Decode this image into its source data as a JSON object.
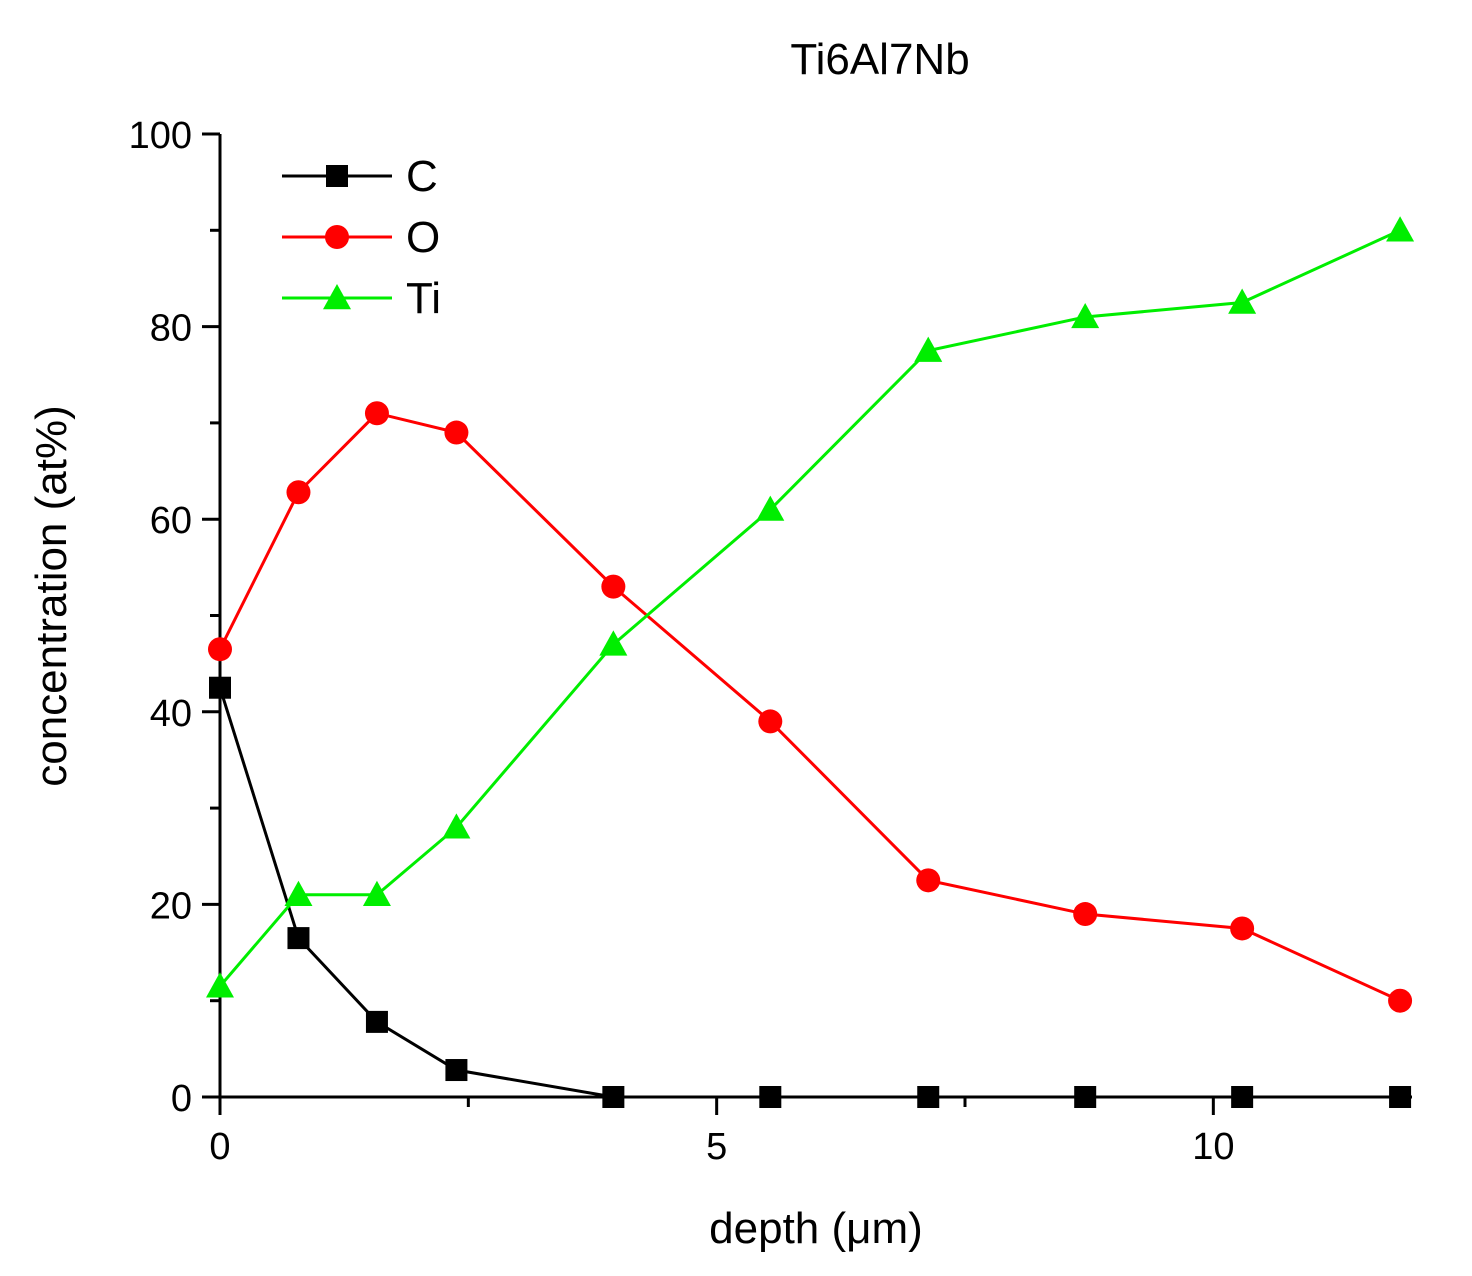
{
  "chart_data": {
    "type": "line",
    "title": "Ti6Al7Nb",
    "xlabel": "depth (μm)",
    "ylabel": "concentration (at%)",
    "xlim": [
      0,
      12
    ],
    "ylim": [
      0,
      100
    ],
    "xticks": [
      0,
      5,
      10
    ],
    "yticks": [
      0,
      20,
      40,
      60,
      80,
      100
    ],
    "grid": false,
    "legend_position": "top-left",
    "x": [
      0,
      0.79,
      1.58,
      2.38,
      3.96,
      5.54,
      7.13,
      8.71,
      10.29,
      11.88
    ],
    "series": [
      {
        "name": "C",
        "color": "#000000",
        "marker": "square",
        "values": [
          42.5,
          16.5,
          7.8,
          2.8,
          0,
          0,
          0,
          0,
          0,
          0
        ]
      },
      {
        "name": "O",
        "color": "#ff0000",
        "marker": "circle",
        "values": [
          46.5,
          62.8,
          71,
          69,
          53,
          39,
          22.5,
          19,
          17.5,
          10
        ]
      },
      {
        "name": "Ti",
        "color": "#00ee00",
        "marker": "triangle",
        "values": [
          11.5,
          21,
          21,
          28,
          47,
          61,
          77.5,
          81,
          82.5,
          90
        ]
      }
    ]
  }
}
